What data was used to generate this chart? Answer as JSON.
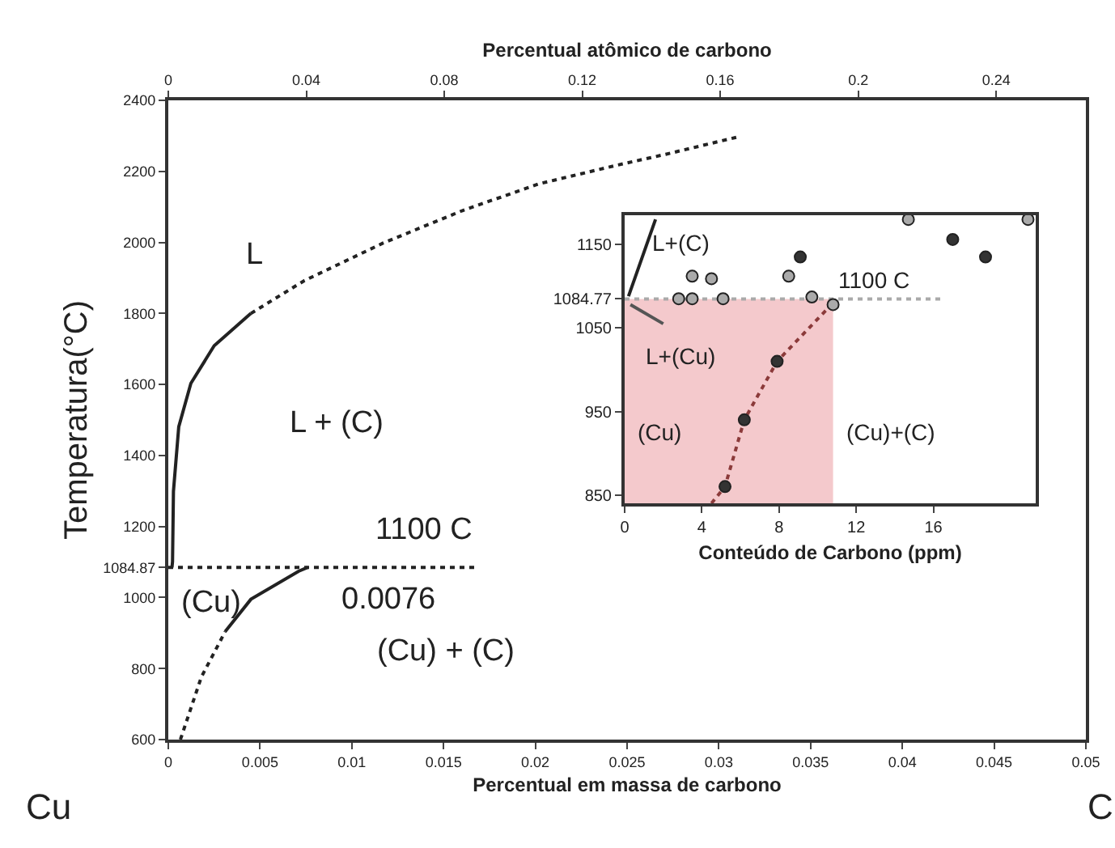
{
  "chart_data": [
    {
      "type": "line",
      "xlabel": "Percentual em massa de carbono",
      "ylabel": "Temperatura(°C)",
      "x2label": "Percentual atômico de carbono",
      "xlim": [
        0,
        0.05
      ],
      "xticks": [
        0,
        0.005,
        0.01,
        0.015,
        0.02,
        0.025,
        0.03,
        0.035,
        0.04,
        0.045,
        0.05
      ],
      "x2lim": [
        0,
        0.266
      ],
      "x2ticks": [
        0,
        0.04,
        0.08,
        0.12,
        0.16,
        0.2,
        0.24
      ],
      "ylim": [
        600,
        2400
      ],
      "yticks": [
        600,
        800,
        1000,
        1084.87,
        1200,
        1400,
        1600,
        1800,
        2000,
        2200,
        2400
      ],
      "grid": false,
      "marker": "none",
      "series": [
        {
          "color": "#222222",
          "line_style": "solid",
          "x": [
            0.0002,
            0.00023,
            0.00028,
            0.00057,
            0.00123,
            0.0025,
            0.0045
          ],
          "values": [
            1084.87,
            1101,
            1299,
            1481,
            1603,
            1709,
            1800
          ]
        },
        {
          "color": "#222222",
          "line_style": "dotted",
          "x": [
            0.0045,
            0.0074,
            0.0117,
            0.016,
            0.0202,
            0.0245,
            0.0271,
            0.0312
          ],
          "values": [
            1800,
            1892,
            1998,
            2089,
            2165,
            2218,
            2248,
            2299
          ]
        },
        {
          "color": "#222222",
          "line_style": "solid",
          "x": [
            0.0031,
            0.0045,
            0.0071,
            0.0076
          ],
          "values": [
            904,
            995,
            1074,
            1084.87
          ]
        },
        {
          "color": "#222222",
          "line_style": "dotted",
          "x": [
            0.00066,
            0.0018,
            0.0031
          ],
          "values": [
            600,
            776,
            904
          ]
        },
        {
          "color": "#222222",
          "line_style": "dotted",
          "x": [
            0,
            0.0168
          ],
          "values": [
            1084.87,
            1084.87
          ]
        }
      ],
      "annotations": [
        "L",
        "L + (C)",
        "1100 C",
        "(Cu)",
        "0.0076",
        "(Cu) + (C)",
        "Cu",
        "C"
      ]
    },
    {
      "type": "line",
      "xlabel": "Conteúdo de Carbono (ppm)",
      "xlim": [
        0,
        21.3
      ],
      "xticks": [
        0,
        4,
        8,
        12,
        16
      ],
      "ylim": [
        840,
        1185
      ],
      "yticks": [
        850,
        950,
        1050,
        1084.77,
        1150
      ],
      "grid": false,
      "marker": "none",
      "series": [
        {
          "type": "area",
          "color": "#f4c9cc",
          "x": [
            0,
            10.8
          ],
          "values": [
            1084.77,
            1084.77
          ]
        },
        {
          "color": "#aaaaaa",
          "line_style": "dotted",
          "x": [
            0,
            16.6
          ],
          "values": [
            1084.77,
            1084.77
          ]
        },
        {
          "color": "#8b3a3a",
          "line_style": "dotted",
          "x": [
            4.5,
            5.2,
            6.2,
            7.9,
            10.8
          ],
          "values": [
            840,
            860,
            940,
            1010,
            1080
          ]
        },
        {
          "color": "#222222",
          "line_style": "solid",
          "x": [
            0.2,
            1.6
          ],
          "values": [
            1088,
            1180
          ]
        },
        {
          "color": "#555555",
          "line_style": "solid",
          "x": [
            0.3,
            2.0
          ],
          "values": [
            1078,
            1055
          ]
        },
        {
          "type": "scatter",
          "marker": "circle",
          "color": "#aaaaaa",
          "x": [
            14.7,
            20.9,
            3.5,
            4.5,
            8.5,
            2.8,
            3.5,
            5.1,
            9.7,
            10.8
          ],
          "values": [
            1180,
            1180,
            1112,
            1109,
            1112,
            1085,
            1085,
            1085,
            1087,
            1078
          ]
        },
        {
          "type": "scatter",
          "marker": "circle",
          "color": "#333333",
          "x": [
            9.1,
            17.0,
            18.7,
            7.9,
            6.2,
            5.2
          ],
          "values": [
            1135,
            1156,
            1135,
            1010,
            940,
            860
          ]
        }
      ],
      "annotations": [
        "L+(C)",
        "1100 C",
        "L+(Cu)",
        "(Cu)",
        "(Cu)+(C)"
      ]
    }
  ]
}
